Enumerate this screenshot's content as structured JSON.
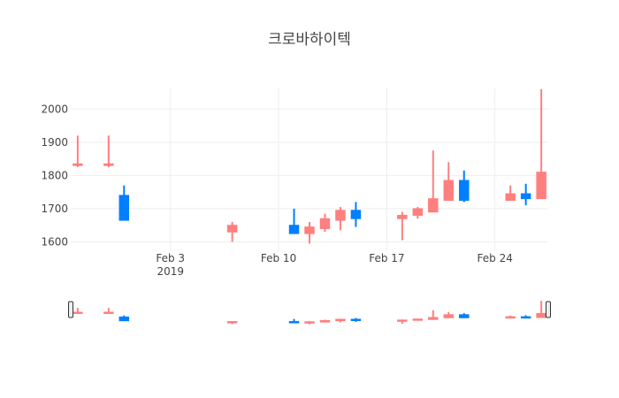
{
  "chart_data": {
    "type": "candlestick",
    "title": "크로바하이텍",
    "x_ticks": [
      {
        "date": "2019-02-03",
        "label": "Feb 3",
        "sublabel": "2019"
      },
      {
        "date": "2019-02-10",
        "label": "Feb 10",
        "sublabel": ""
      },
      {
        "date": "2019-02-17",
        "label": "Feb 17",
        "sublabel": ""
      },
      {
        "date": "2019-02-24",
        "label": "Feb 24",
        "sublabel": ""
      }
    ],
    "y_ticks": [
      1600,
      1700,
      1800,
      1900,
      2000
    ],
    "xlim": [
      "2019-01-28",
      "2019-02-27"
    ],
    "ylim": [
      1572,
      2062
    ],
    "rangeslider": true,
    "increasing_color": "#ff7f7f",
    "decreasing_color": "#007fff",
    "candles": [
      {
        "date": "2019-01-28",
        "open": 1830,
        "high": 1920,
        "low": 1825,
        "close": 1835
      },
      {
        "date": "2019-01-30",
        "open": 1830,
        "high": 1920,
        "low": 1825,
        "close": 1835
      },
      {
        "date": "2019-01-31",
        "open": 1740,
        "high": 1770,
        "low": 1665,
        "close": 1665
      },
      {
        "date": "2019-02-07",
        "open": 1630,
        "high": 1660,
        "low": 1600,
        "close": 1650
      },
      {
        "date": "2019-02-11",
        "open": 1650,
        "high": 1700,
        "low": 1625,
        "close": 1625
      },
      {
        "date": "2019-02-12",
        "open": 1625,
        "high": 1660,
        "low": 1595,
        "close": 1645
      },
      {
        "date": "2019-02-13",
        "open": 1640,
        "high": 1685,
        "low": 1630,
        "close": 1670
      },
      {
        "date": "2019-02-14",
        "open": 1665,
        "high": 1705,
        "low": 1635,
        "close": 1695
      },
      {
        "date": "2019-02-15",
        "open": 1695,
        "high": 1720,
        "low": 1645,
        "close": 1670
      },
      {
        "date": "2019-02-18",
        "open": 1670,
        "high": 1690,
        "low": 1605,
        "close": 1680
      },
      {
        "date": "2019-02-19",
        "open": 1680,
        "high": 1705,
        "low": 1670,
        "close": 1700
      },
      {
        "date": "2019-02-20",
        "open": 1690,
        "high": 1875,
        "low": 1690,
        "close": 1730
      },
      {
        "date": "2019-02-21",
        "open": 1725,
        "high": 1840,
        "low": 1725,
        "close": 1785
      },
      {
        "date": "2019-02-22",
        "open": 1785,
        "high": 1815,
        "low": 1720,
        "close": 1725
      },
      {
        "date": "2019-02-25",
        "open": 1725,
        "high": 1770,
        "low": 1725,
        "close": 1745
      },
      {
        "date": "2019-02-26",
        "open": 1745,
        "high": 1775,
        "low": 1710,
        "close": 1730
      },
      {
        "date": "2019-02-27",
        "open": 1730,
        "high": 2060,
        "low": 1730,
        "close": 1810
      }
    ]
  }
}
